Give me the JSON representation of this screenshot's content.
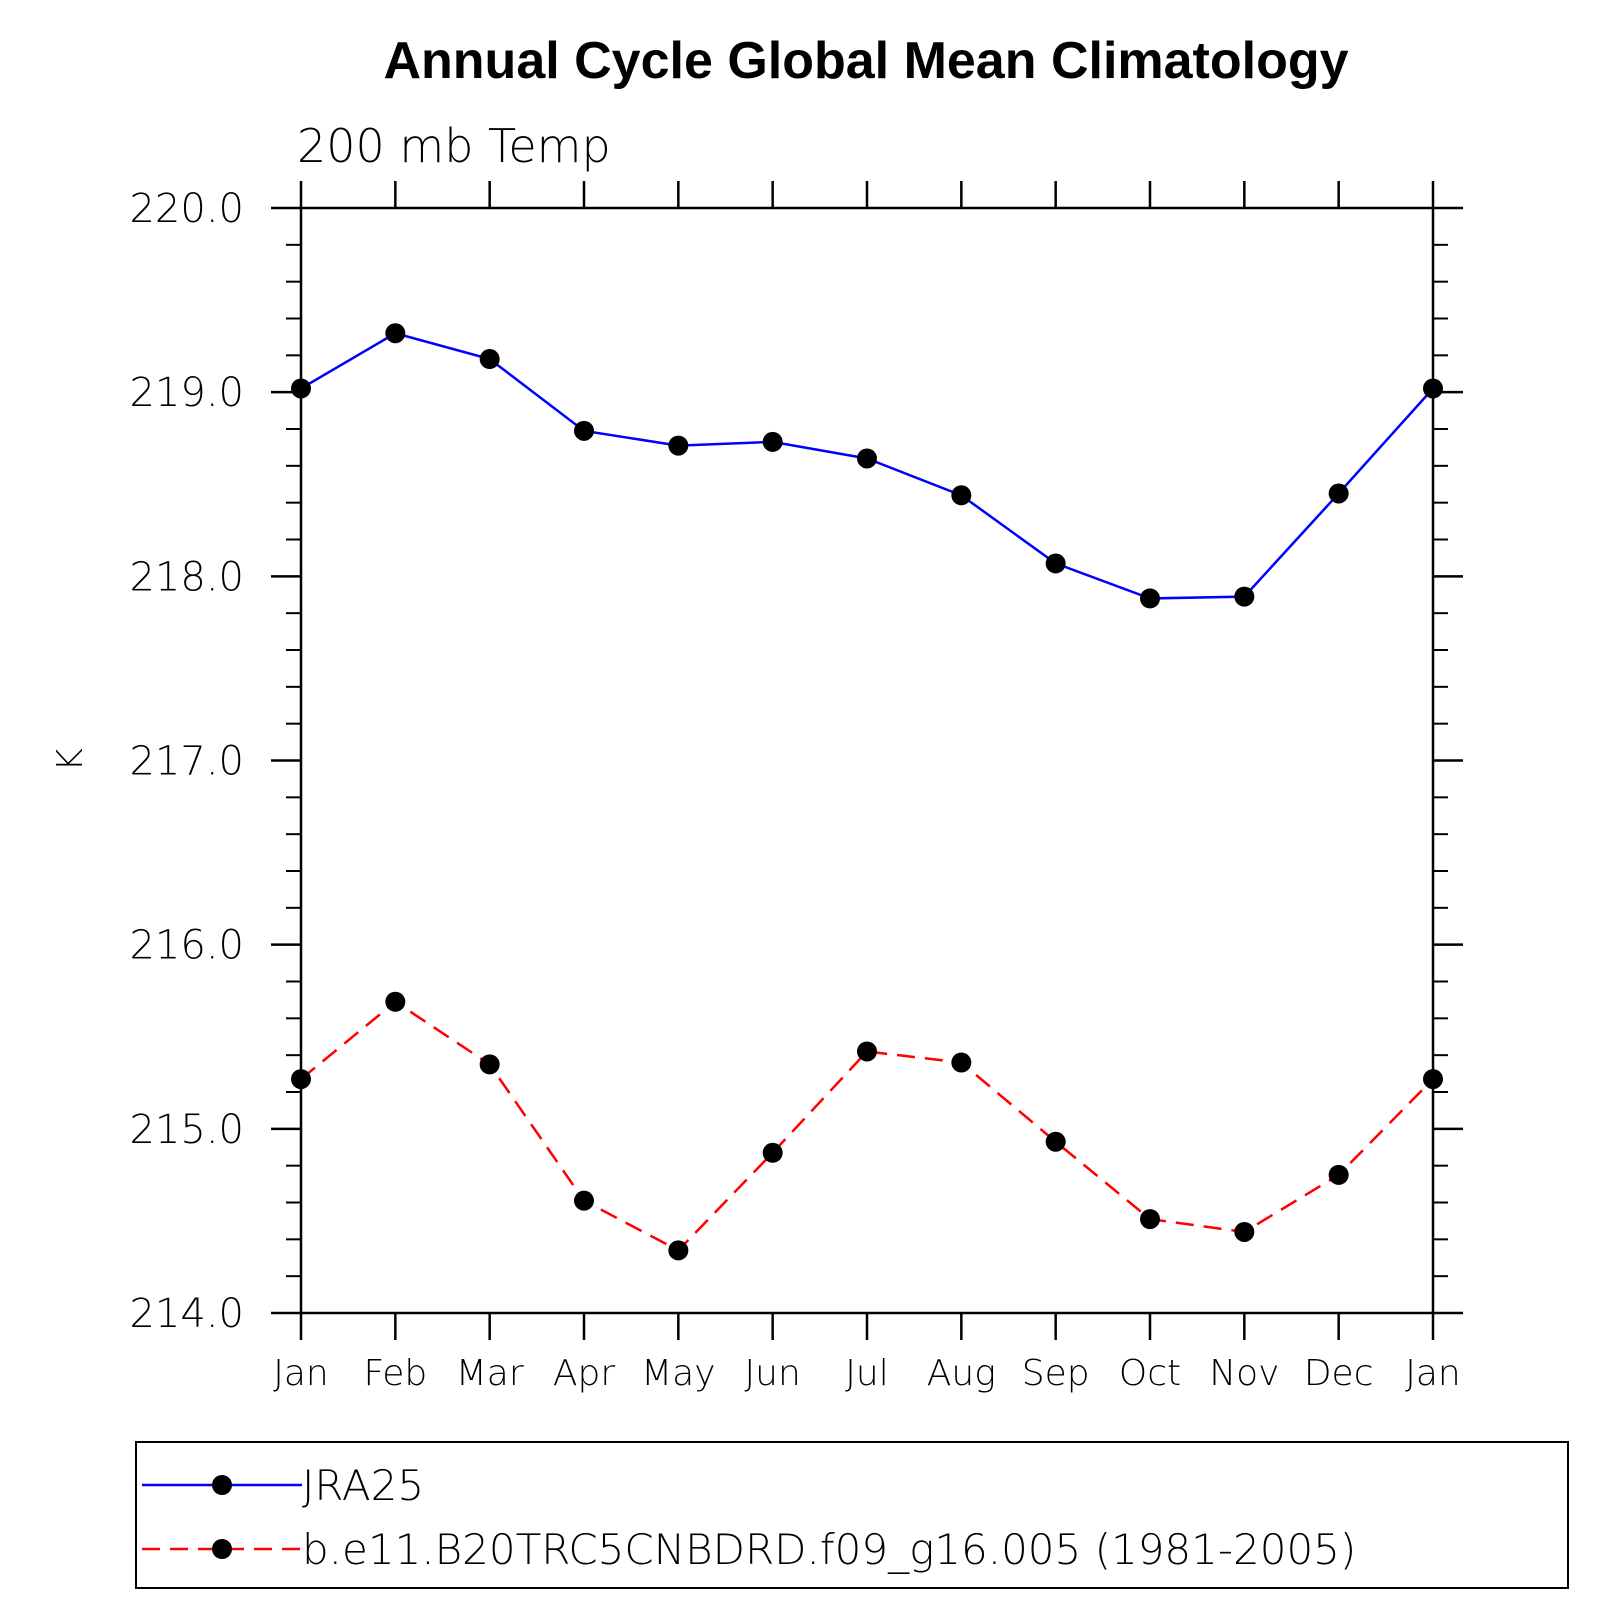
{
  "chart_data": {
    "type": "line",
    "title": "Annual Cycle Global Mean Climatology",
    "subtitle": "200 mb Temp",
    "xlabel": "",
    "ylabel": "K",
    "ylim": [
      214.0,
      220.0
    ],
    "y_ticks": [
      "214.0",
      "215.0",
      "216.0",
      "217.0",
      "218.0",
      "219.0",
      "220.0"
    ],
    "categories": [
      "Jan",
      "Feb",
      "Mar",
      "Apr",
      "May",
      "Jun",
      "Jul",
      "Aug",
      "Sep",
      "Oct",
      "Nov",
      "Dec",
      "Jan"
    ],
    "grid": false,
    "legend_position": "bottom",
    "series": [
      {
        "name": "JRA25",
        "color": "#0000ff",
        "dash": "solid",
        "marker": "filled-circle",
        "values": [
          219.02,
          219.32,
          219.18,
          218.79,
          218.71,
          218.73,
          218.64,
          218.44,
          218.07,
          217.88,
          217.89,
          218.45,
          219.02
        ]
      },
      {
        "name": "b.e11.B20TRC5CNBDRD.f09_g16.005 (1981-2005)",
        "color": "#ff0000",
        "dash": "dashed",
        "marker": "filled-circle",
        "values": [
          215.27,
          215.69,
          215.35,
          214.61,
          214.34,
          214.87,
          215.42,
          215.36,
          214.93,
          214.51,
          214.44,
          214.75,
          215.27
        ]
      }
    ]
  }
}
